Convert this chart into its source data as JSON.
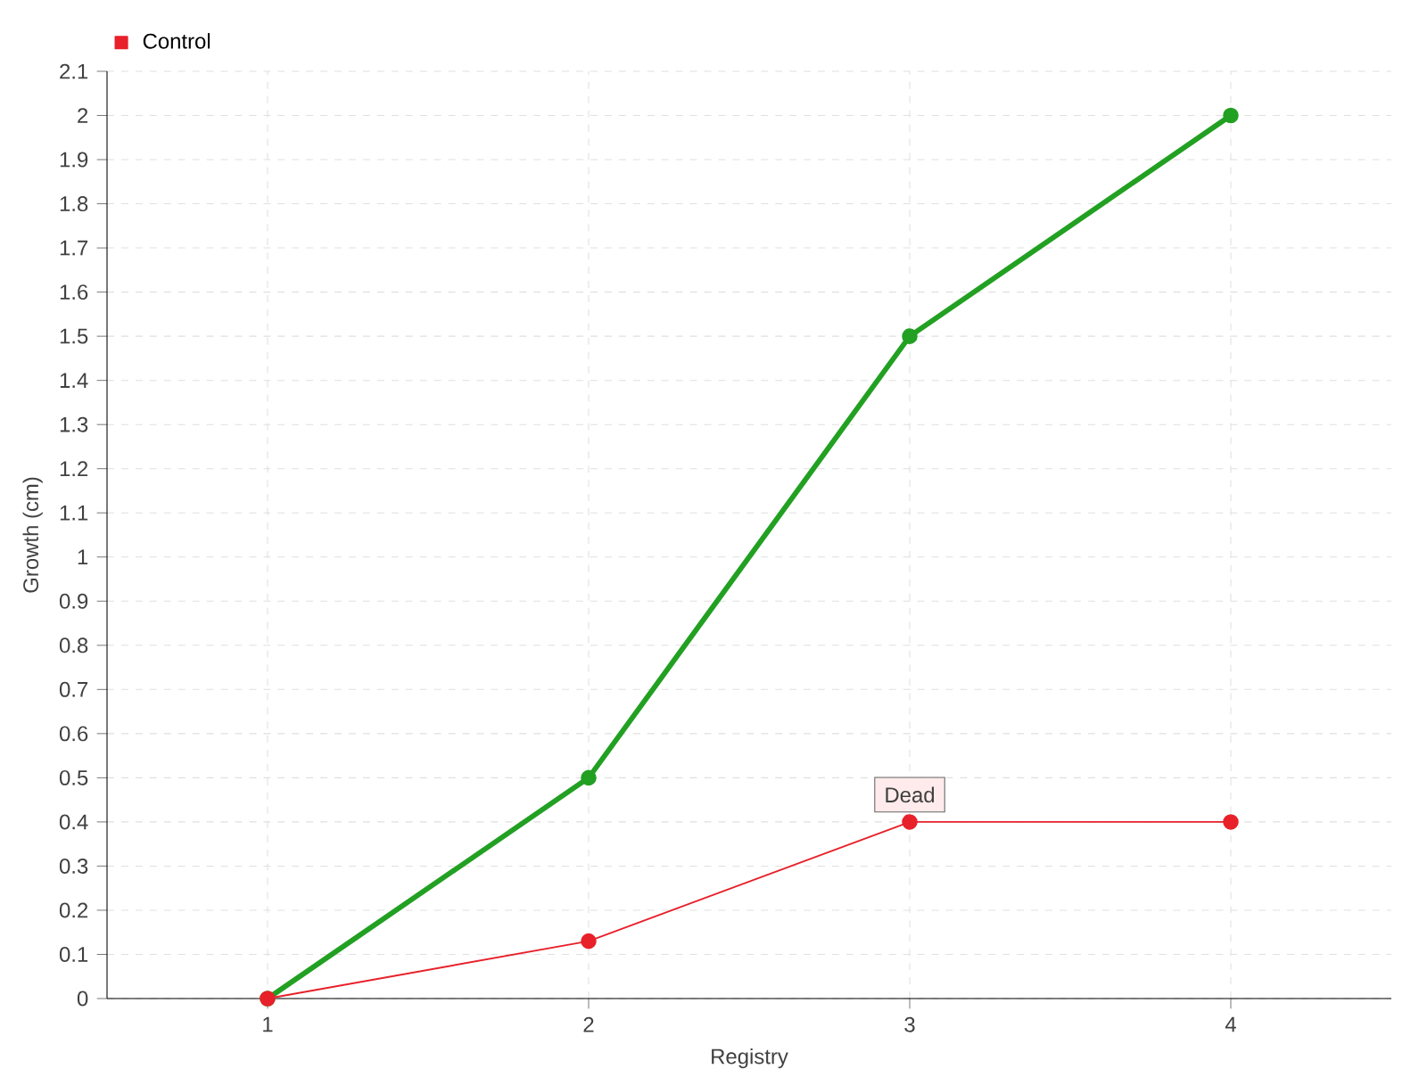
{
  "chart_data": {
    "type": "line",
    "xlabel": "Registry",
    "ylabel": "Growth (cm)",
    "categories": [
      "1",
      "2",
      "3",
      "4"
    ],
    "series": [
      {
        "color": "#22a022",
        "values": [
          0,
          0.5,
          1.5,
          2.0
        ]
      },
      {
        "name": "Control",
        "color": "#e8202a",
        "values": [
          0,
          0.13,
          0.4,
          0.4
        ]
      }
    ],
    "ylim": [
      0,
      2.1
    ],
    "yticks": [
      0,
      0.1,
      0.2,
      0.3,
      0.4,
      0.5,
      0.6,
      0.7,
      0.8,
      0.9,
      1,
      1.1,
      1.2,
      1.3,
      1.4,
      1.5,
      1.6,
      1.7,
      1.8,
      1.9,
      2,
      2.1
    ],
    "annotations": [
      {
        "text": "Dead",
        "x": "3",
        "y": 0.4
      }
    ],
    "grid": true,
    "legend": "top left",
    "marker": "circle",
    "line_style": "solid"
  }
}
